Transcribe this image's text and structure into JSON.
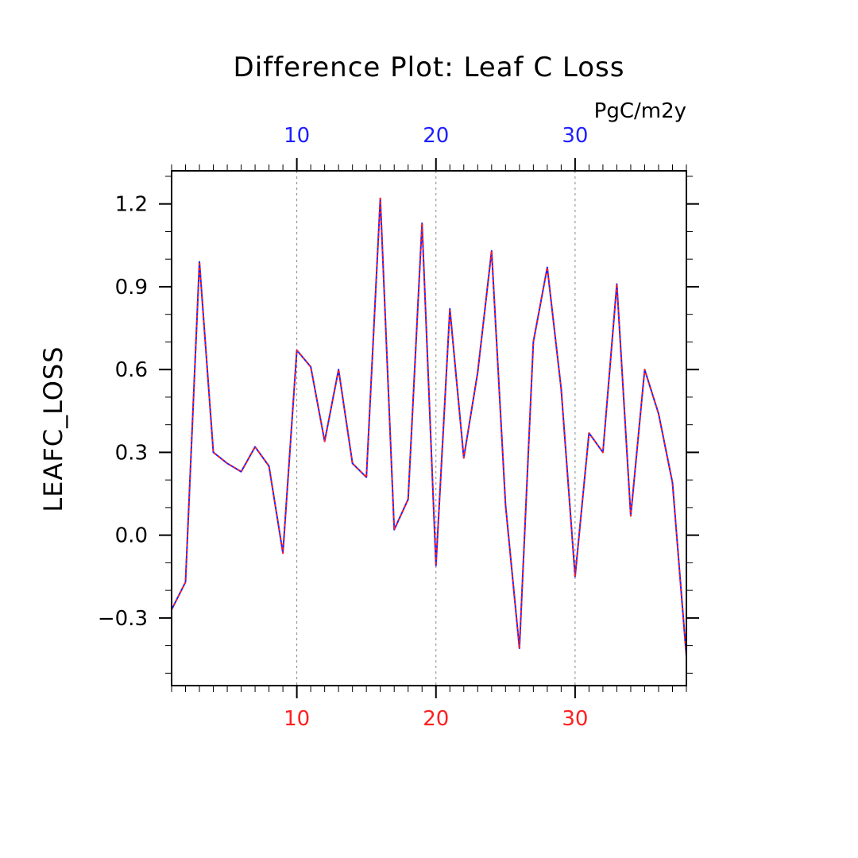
{
  "chart_data": {
    "type": "line",
    "title": "Difference Plot: Leaf C Loss",
    "ylabel": "LEAFC_LOSS",
    "units_label": "PgC/m2y",
    "xlim": [
      1,
      38
    ],
    "ylim": [
      -0.545,
      1.32
    ],
    "x_ticks_major": [
      10,
      20,
      30
    ],
    "x_ticks_minor_step": 1,
    "y_ticks_major": [
      -0.3,
      0.0,
      0.3,
      0.6,
      0.9,
      1.2
    ],
    "y_tick_labels": [
      "−0.3",
      "0.0",
      "0.3",
      "0.6",
      "0.9",
      "1.2"
    ],
    "y_ticks_minor_step": 0.1,
    "grid": "vertical-dashed-at-major-x",
    "bottom_axis_color": "#ff2020",
    "top_axis_color": "#2020ff",
    "x": [
      1,
      2,
      3,
      4,
      5,
      6,
      7,
      8,
      9,
      10,
      11,
      12,
      13,
      14,
      15,
      16,
      17,
      18,
      19,
      20,
      21,
      22,
      23,
      24,
      25,
      26,
      27,
      28,
      29,
      30,
      31,
      32,
      33,
      34,
      35,
      36,
      37,
      38
    ],
    "series": [
      {
        "color": "#2020ff",
        "values": [
          -0.27,
          -0.17,
          0.99,
          0.3,
          0.26,
          0.23,
          0.32,
          0.25,
          -0.065,
          0.67,
          0.61,
          0.34,
          0.6,
          0.26,
          0.21,
          1.22,
          0.02,
          0.13,
          1.13,
          -0.11,
          0.82,
          0.28,
          0.59,
          1.03,
          0.11,
          -0.41,
          0.7,
          0.97,
          0.53,
          -0.15,
          0.37,
          0.3,
          0.91,
          0.07,
          0.6,
          0.44,
          0.19,
          -0.44
        ]
      },
      {
        "color": "#ff2020",
        "dash": true,
        "values": [
          -0.27,
          -0.17,
          0.99,
          0.3,
          0.26,
          0.23,
          0.32,
          0.25,
          -0.065,
          0.67,
          0.61,
          0.34,
          0.6,
          0.26,
          0.21,
          1.22,
          0.02,
          0.13,
          1.13,
          -0.11,
          0.82,
          0.28,
          0.59,
          1.03,
          0.11,
          -0.41,
          0.7,
          0.97,
          0.53,
          -0.15,
          0.37,
          0.3,
          0.91,
          0.07,
          0.6,
          0.44,
          0.19,
          -0.44
        ]
      }
    ]
  }
}
